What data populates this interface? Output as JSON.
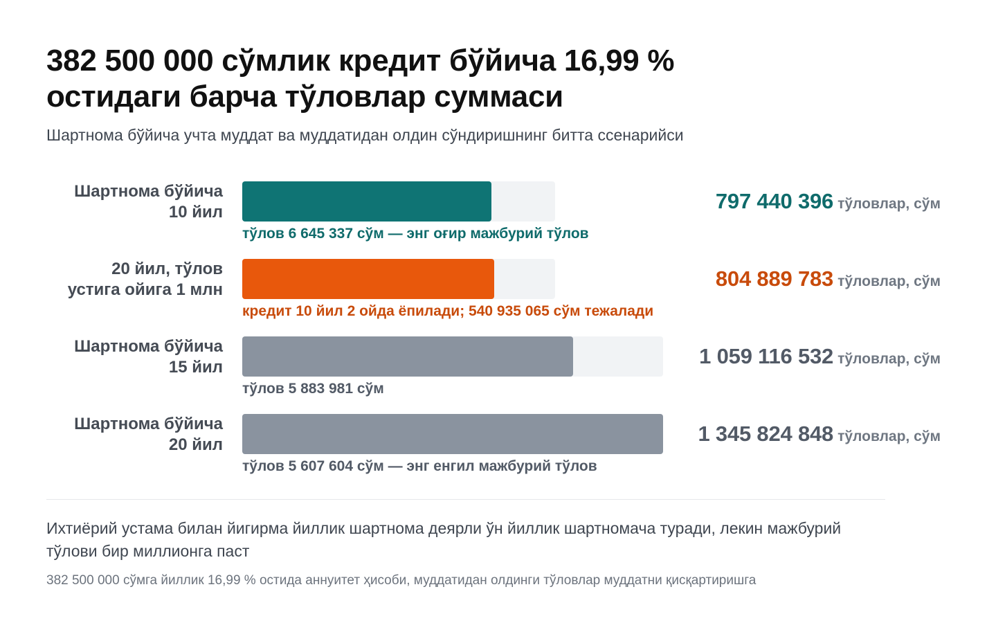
{
  "header": {
    "title": "382 500 000 сўмлик кредит бўйича 16,99 % остидаги барча тўловлар суммаси",
    "subtitle": "Шартнома бўйича учта муддат ва муддатидан олдин сўндиришнинг битта ссенарийси"
  },
  "footer": {
    "conclusion": "Ихтиёрий устама билан йигирма йиллик шартнома деярли ўн йиллик шартномача туради, лекин мажбурий тўлови бир миллионга паст",
    "source": "382 500 000 сўмга йиллик 16,99 % остида аннуитет ҳисоби, муддатидан олдинги тўловлар муддатни қисқартиришга"
  },
  "chart_data": {
    "type": "bar",
    "orientation": "horizontal",
    "title": "382 500 000 сўмлик кредит бўйича 16,99 % остидаги барча тўловлар суммаси",
    "subtitle": "Шартнома бўйича учта муддат ва муддатидан олдин сўндиришнинг битта ссенарийси",
    "value_unit": "тўловлар, сўм",
    "scale_max": 1345824848,
    "categories": [
      "Шартнома бўйича\n10 йил",
      "20 йил, тўлов\nустига ойига 1 млн",
      "Шартнома бўйича\n15 йил",
      "Шартнома бўйича\n20 йил"
    ],
    "values": [
      797440396,
      804889783,
      1059116532,
      1345824848
    ],
    "bars": [
      {
        "label": "Шартнома бўйича\n10 йил",
        "value": 797440396,
        "value_text": "797 440 396",
        "note": "тўлов 6 645 337 сўм — энг оғир мажбурий тўлов",
        "color": "#0f7474",
        "value_color": "#0f6b6b",
        "note_color": "#0f6b6b",
        "track_value": 1000000000
      },
      {
        "label": "20 йил, тўлов\nустига ойига 1 млн",
        "value": 804889783,
        "value_text": "804 889 783",
        "note": "кредит 10 йил 2 ойда ёпилади; 540 935 065 сўм тежалади",
        "color": "#e8580c",
        "value_color": "#c84b0b",
        "note_color": "#c84b0b",
        "track_value": 1000000000
      },
      {
        "label": "Шартнома бўйича\n15 йил",
        "value": 1059116532,
        "value_text": "1 059 116 532",
        "note": "тўлов 5 883 981 сўм",
        "color": "#8a939f",
        "value_color": "#525a66",
        "note_color": "#525a66",
        "track_value": 1345824848
      },
      {
        "label": "Шартнома бўйича\n20 йил",
        "value": 1345824848,
        "value_text": "1 345 824 848",
        "note": "тўлов 5 607 604 сўм — энг енгил мажбурий тўлов",
        "color": "#8a939f",
        "value_color": "#525a66",
        "note_color": "#525a66",
        "track_value": 1345824848
      }
    ],
    "legend": "none",
    "grid": false
  }
}
